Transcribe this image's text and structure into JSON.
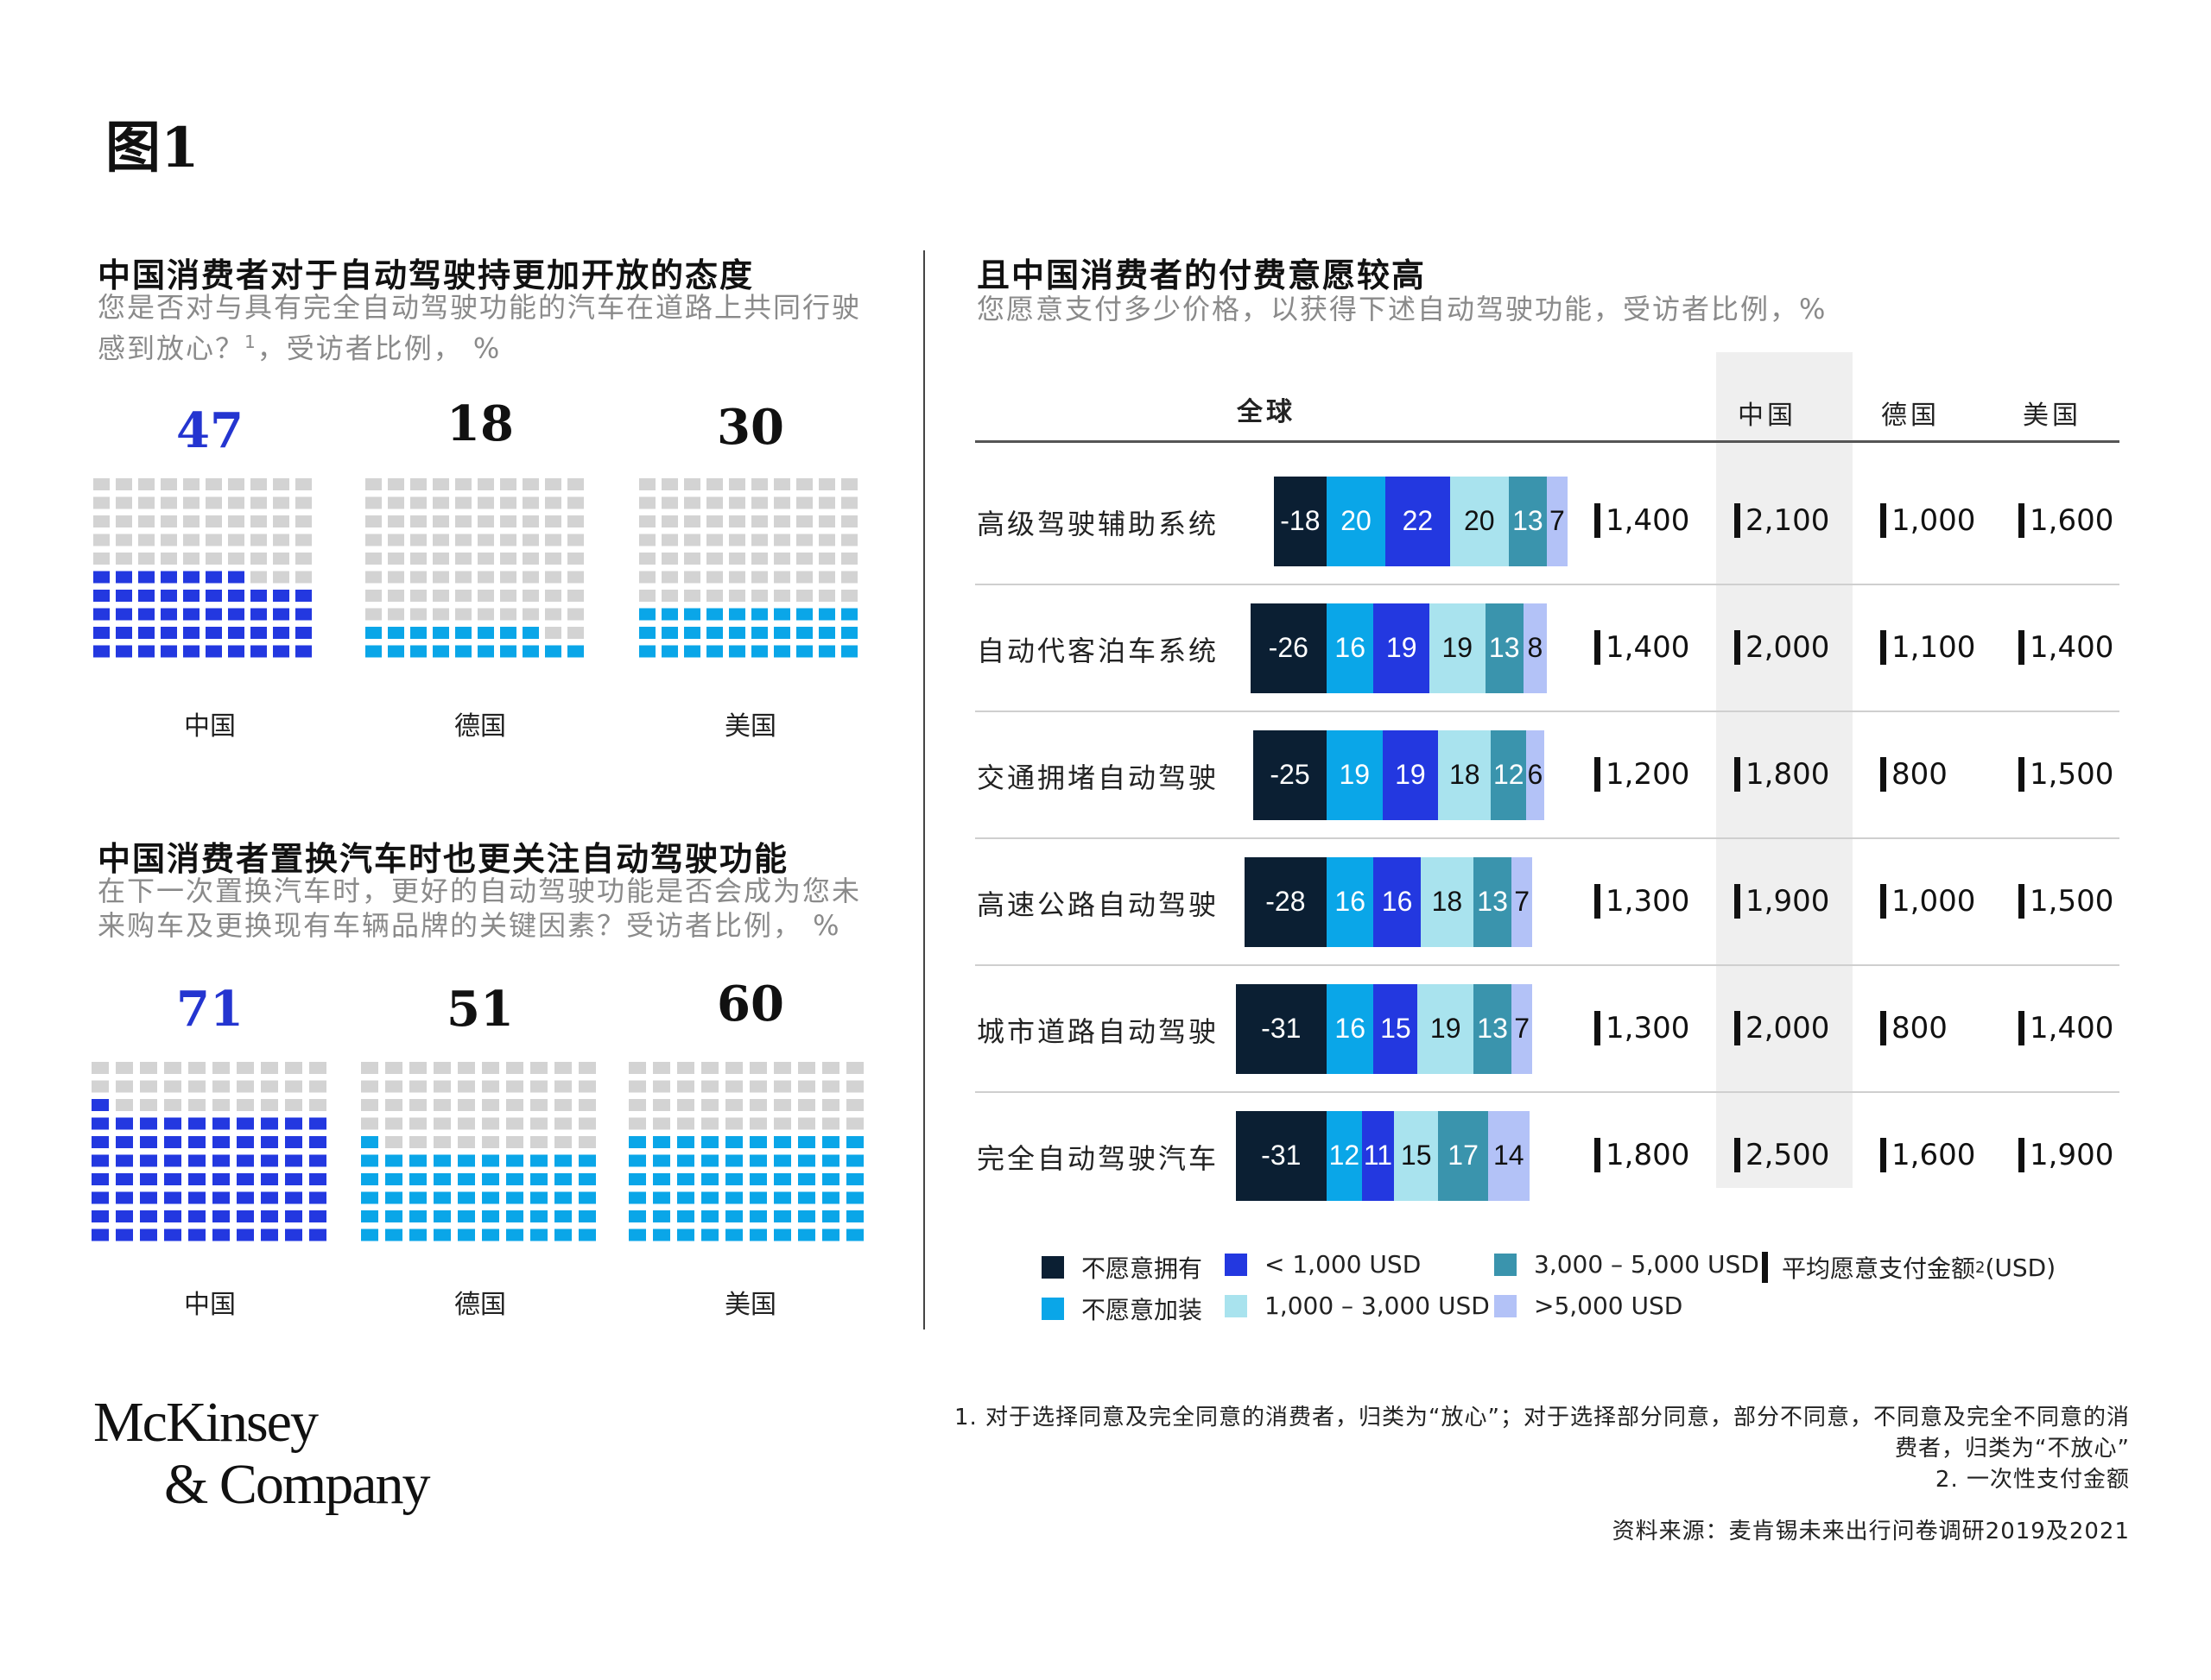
{
  "figure_label": "图1",
  "left": {
    "section1": {
      "title": "中国消费者对于自动驾驶持更加开放的态度",
      "subtitle_line1": "您是否对与具有完全自动驾驶功能的汽车在道路上共同行驶",
      "subtitle_line2": "感到放心？",
      "subtitle_sup": "1",
      "subtitle_tail": "，受访者比例， %"
    },
    "section2": {
      "title": "中国消费者置换汽车时也更关注自动驾驶功能",
      "subtitle_line1": "在下一次置换汽车时，更好的自动驾驶功能是否会成为您未",
      "subtitle_line2": "来购车及更换现有车辆品牌的关键因素？受访者比例， %"
    }
  },
  "right": {
    "title": "且中国消费者的付费意愿较高",
    "subtitle": "您愿意支付多少价格，以获得下述自动驾驶功能，受访者比例，%",
    "col_global": "全球",
    "col_china": "中国",
    "col_germany": "德国",
    "col_usa": "美国"
  },
  "legend": {
    "unwilling_own": "不愿意拥有",
    "unwilling_install": "不愿意加装",
    "lt1000": "< 1,000 USD",
    "r1000_3000": "1,000 – 3,000 USD",
    "r3000_5000": "3,000 – 5,000 USD",
    "gt5000": ">5,000 USD",
    "avg_label": "平均愿意支付金额",
    "avg_sup": "2",
    "avg_unit": "(USD)"
  },
  "footnotes": {
    "note1_line1": "1.  对于选择同意及完全同意的消费者，归类为“放心”；对于选择部分同意，部分不同意，不同意及完全不同意的消",
    "note1_line2": "费者，归类为“不放心”",
    "note2": "2.  一次性支付金额",
    "source": "资料来源：麦肯锡未来出行问卷调研2019及2021"
  },
  "logo": {
    "line1": "McKinsey",
    "line2": "& Company"
  },
  "colors": {
    "navy": "#0b1f33",
    "cyan": "#0aa6e8",
    "blue": "#2338e0",
    "lightcyan": "#a9e3ee",
    "teal": "#3a94ad",
    "lavender": "#b3c2f7",
    "waffle_grey": "#d3d3d3",
    "china_highlight": "#efefef",
    "title_blue": "#2435d0"
  },
  "chart_data": [
    {
      "type": "waffle",
      "title": "中国消费者对于自动驾驶持更加开放的态度",
      "categories": [
        "中国",
        "德国",
        "美国"
      ],
      "values": [
        47,
        18,
        30
      ],
      "total": 100,
      "colors": [
        "#2338e0",
        "#0aa6e8",
        "#0aa6e8"
      ]
    },
    {
      "type": "waffle",
      "title": "中国消费者置换汽车时也更关注自动驾驶功能",
      "categories": [
        "中国",
        "德国",
        "美国"
      ],
      "values": [
        71,
        51,
        60
      ],
      "total": 100,
      "colors": [
        "#2338e0",
        "#0aa6e8",
        "#0aa6e8"
      ]
    },
    {
      "type": "bar",
      "stacked": true,
      "diverging": true,
      "title": "且中国消费者的付费意愿较高",
      "categories": [
        "高级驾驶辅助系统",
        "自动代客泊车系统",
        "交通拥堵自动驾驶",
        "高速公路自动驾驶",
        "城市道路自动驾驶",
        "完全自动驾驶汽车"
      ],
      "series": [
        {
          "name": "不愿意拥有",
          "values": [
            -18,
            -26,
            -25,
            -28,
            -31,
            -31
          ]
        },
        {
          "name": "不愿意加装",
          "values": [
            20,
            16,
            19,
            16,
            16,
            12
          ]
        },
        {
          "name": "< 1,000 USD",
          "values": [
            22,
            19,
            19,
            16,
            15,
            11
          ]
        },
        {
          "name": "1,000 – 3,000 USD",
          "values": [
            20,
            19,
            18,
            18,
            19,
            15
          ]
        },
        {
          "name": "3,000 – 5,000 USD",
          "values": [
            13,
            13,
            12,
            13,
            13,
            17
          ]
        },
        {
          "name": ">5,000 USD",
          "values": [
            7,
            8,
            6,
            7,
            7,
            14
          ]
        }
      ],
      "average_payment_usd": {
        "全球": [
          "1,400",
          "1,400",
          "1,200",
          "1,300",
          "1,300",
          "1,800"
        ],
        "中国": [
          "2,100",
          "2,000",
          "1,800",
          "1,900",
          "2,000",
          "2,500"
        ],
        "德国": [
          "1,000",
          "1,100",
          "800",
          "1,000",
          "800",
          "1,600"
        ],
        "美国": [
          "1,600",
          "1,400",
          "1,500",
          "1,500",
          "1,400",
          "1,900"
        ]
      }
    }
  ]
}
